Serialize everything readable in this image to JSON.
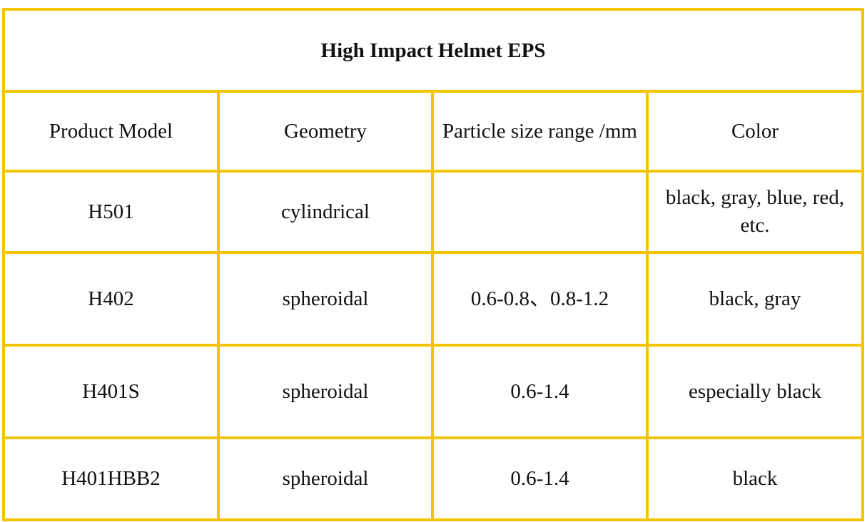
{
  "table": {
    "title": "High Impact Helmet EPS",
    "headers": {
      "model": "Product Model",
      "geometry": "Geometry",
      "particle_size": "Particle size range /mm",
      "color": "Color"
    },
    "rows": [
      {
        "model": "H501",
        "geometry": "cylindrical",
        "particle_size": "",
        "color": "black, gray, blue, red, etc."
      },
      {
        "model": "H402",
        "geometry": "spheroidal",
        "particle_size": "0.6-0.8、0.8-1.2",
        "color": "black, gray"
      },
      {
        "model": "H401S",
        "geometry": "spheroidal",
        "particle_size": "0.6-1.4",
        "color": "especially black"
      },
      {
        "model": "H401HBB2",
        "geometry": "spheroidal",
        "particle_size": "0.6-1.4",
        "color": "black"
      }
    ]
  },
  "colors": {
    "border": "#f5c400",
    "text": "#111111",
    "background": "#ffffff"
  }
}
